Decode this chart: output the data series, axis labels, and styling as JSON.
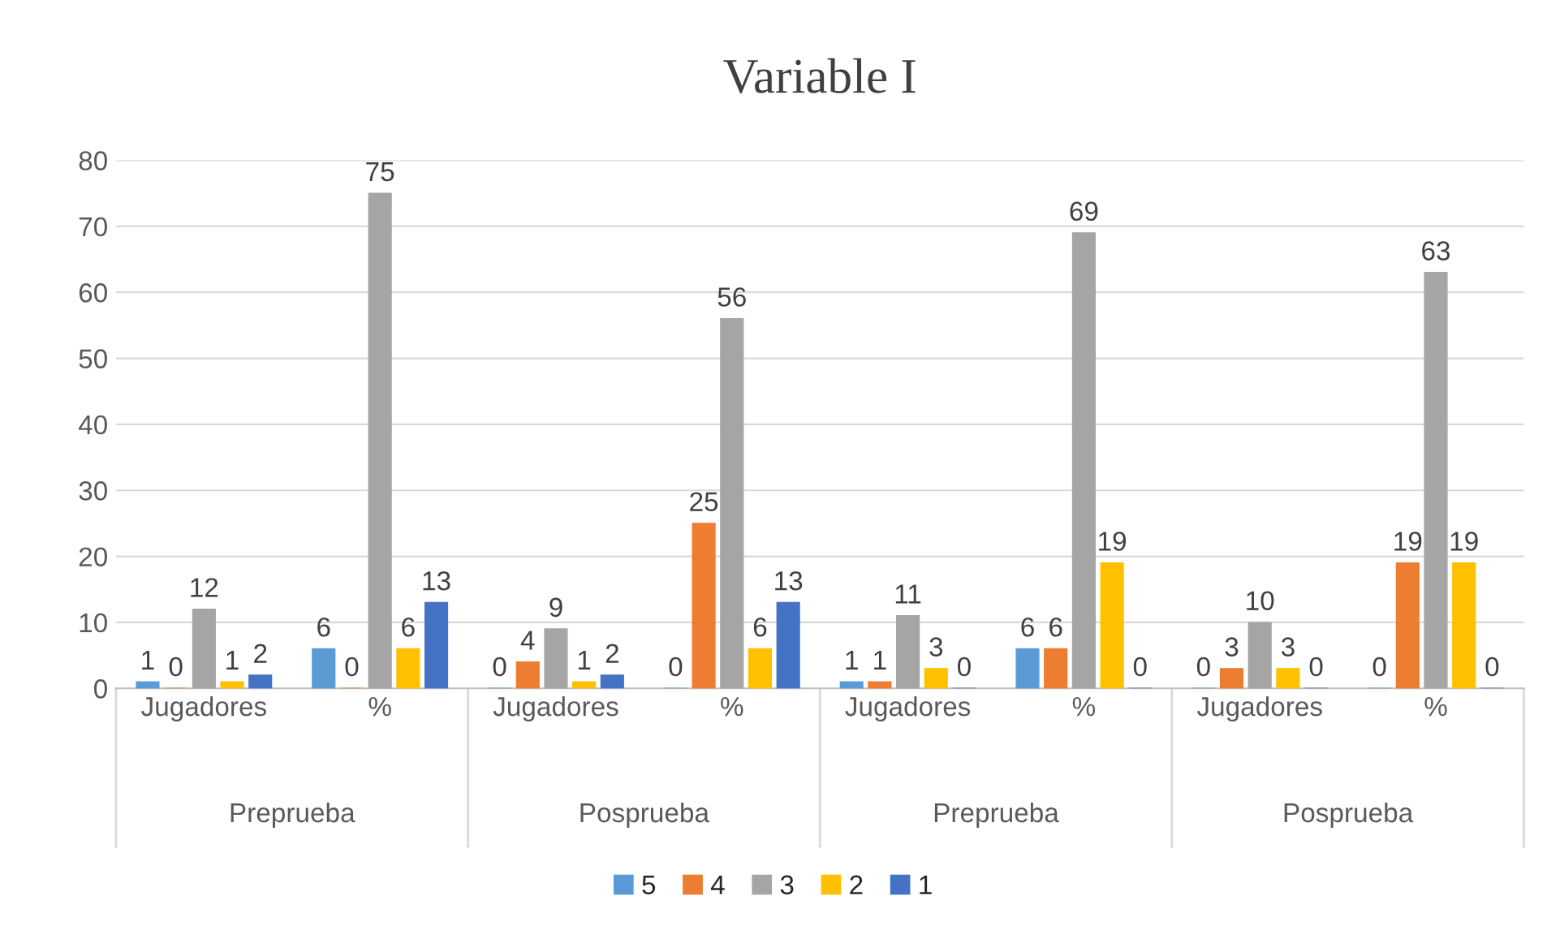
{
  "chart_data": {
    "type": "bar",
    "title": "Variable I",
    "categories": [
      "Jugadores",
      "%",
      "Jugadores",
      "%",
      "Jugadores",
      "%",
      "Jugadores",
      "%"
    ],
    "series": [
      {
        "name": "5",
        "color": "#5b9bd5",
        "values": [
          1,
          6,
          0,
          0,
          1,
          6,
          0,
          0
        ]
      },
      {
        "name": "4",
        "color": "#ed7d31",
        "values": [
          0,
          0,
          4,
          25,
          1,
          6,
          3,
          19
        ]
      },
      {
        "name": "3",
        "color": "#a5a5a5",
        "values": [
          12,
          75,
          9,
          56,
          11,
          69,
          10,
          63
        ]
      },
      {
        "name": "2",
        "color": "#ffc000",
        "values": [
          1,
          6,
          1,
          6,
          3,
          19,
          3,
          19
        ]
      },
      {
        "name": "1",
        "color": "#4472c4",
        "values": [
          2,
          13,
          2,
          13,
          0,
          0,
          0,
          0
        ]
      }
    ],
    "annotations": [
      "Preprueba",
      "Posprueba",
      "Preprueba",
      "Posprueba"
    ],
    "ylim": [
      0,
      80
    ],
    "yticks": [
      0,
      10,
      20,
      30,
      40,
      50,
      60,
      70,
      80
    ],
    "data_labels": true,
    "grid": "y",
    "legend": "bottom"
  }
}
